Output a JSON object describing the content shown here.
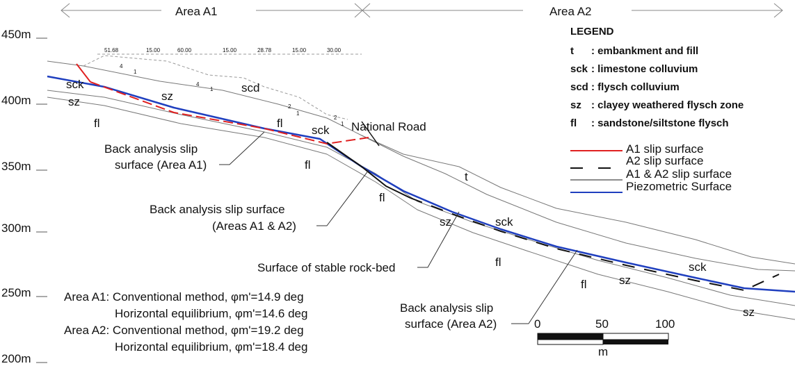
{
  "areas": [
    "Area A1",
    "Area A2"
  ],
  "elevation_labels": [
    "450m",
    "400m",
    "350m",
    "300m",
    "250m",
    "200m"
  ],
  "legend": {
    "title": "LEGEND",
    "entries": [
      {
        "code": "t",
        "text": ": embankment and fill"
      },
      {
        "code": "sck",
        "text": ": limestone colluvium"
      },
      {
        "code": "scd",
        "text": ": flysch colluvium"
      },
      {
        "code": "sz",
        "text": ": clayey weathered flysch zone"
      },
      {
        "code": "fl",
        "text": ": sandstone/siltstone flysch"
      }
    ],
    "lines": [
      "A1 slip surface",
      "A2 slip surface",
      "A1 & A2 slip surface",
      "Piezometric Surface"
    ]
  },
  "zone_labels": [
    "sck",
    "sz",
    "fl",
    "sz",
    "scd",
    "sck",
    "fl",
    "fl",
    "t",
    "fl",
    "sz",
    "sck",
    "fl",
    "fl",
    "sz",
    "sck",
    "sz"
  ],
  "dimension_labels": [
    "51.68",
    "15.00",
    "60.00",
    "15.00",
    "28.78",
    "15.00",
    "30.00"
  ],
  "slope_labels": [
    "4",
    "1",
    "4",
    "1",
    "2",
    "1",
    "2",
    "1"
  ],
  "annotations": {
    "national_road": "National Road",
    "slip_a1": [
      "Back analysis slip",
      "surface (Area A1)"
    ],
    "slip_a1_a2": [
      "Back analysis slip surface",
      "(Areas A1 & A2)"
    ],
    "rock_bed": "Surface of stable rock-bed",
    "slip_a2": [
      "Back analysis slip",
      "surface (Area A2)"
    ]
  },
  "method_notes": [
    "Area A1: Conventional method, φm'=14.9 deg",
    "Horizontal equilibrium, φm'=14.6 deg",
    "Area A2: Conventional method, φm'=19.2 deg",
    "Horizontal equilibrium, φm'=18.4 deg"
  ],
  "scale": {
    "labels": [
      "0",
      "50",
      "100"
    ],
    "unit": "m"
  }
}
